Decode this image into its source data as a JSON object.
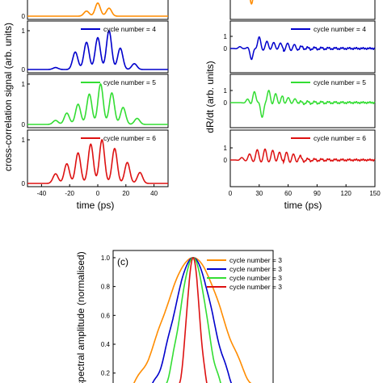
{
  "chart_data": [
    {
      "type": "line",
      "panel": "a",
      "xlabel": "time (ps)",
      "ylabel": "cross-correlation signal (arb. units)",
      "xlim": [
        -50,
        50
      ],
      "xticks": [
        "-40",
        "-20",
        "0",
        "20",
        "40"
      ],
      "subplots": [
        {
          "label": "",
          "color": "#ff8c00",
          "yticks": [
            "0"
          ],
          "pulses": [
            [
              -8,
              0.35
            ],
            [
              0,
              0.9
            ],
            [
              8,
              0.55
            ]
          ]
        },
        {
          "label": "cycle number = 4",
          "color": "#0000cc",
          "yticks": [
            "0",
            "1"
          ],
          "pulses": [
            [
              -30,
              0.05
            ],
            [
              -16,
              0.45
            ],
            [
              -8,
              0.7
            ],
            [
              0,
              0.82
            ],
            [
              8,
              1.0
            ],
            [
              16,
              0.55
            ],
            [
              26,
              0.15
            ]
          ]
        },
        {
          "label": "cycle number = 5",
          "color": "#33dd33",
          "yticks": [
            "0",
            "1"
          ],
          "pulses": [
            [
              -30,
              0.1
            ],
            [
              -22,
              0.28
            ],
            [
              -14,
              0.5
            ],
            [
              -6,
              0.75
            ],
            [
              2,
              1.0
            ],
            [
              10,
              0.78
            ],
            [
              18,
              0.42
            ],
            [
              28,
              0.15
            ]
          ]
        },
        {
          "label": "cycle number = 6",
          "color": "#dd1111",
          "yticks": [
            "0",
            "1"
          ],
          "pulses": [
            [
              -30,
              0.22
            ],
            [
              -22,
              0.45
            ],
            [
              -14,
              0.7
            ],
            [
              -5,
              0.9
            ],
            [
              3,
              1.0
            ],
            [
              12,
              0.8
            ],
            [
              21,
              0.48
            ],
            [
              30,
              0.25
            ]
          ]
        }
      ]
    },
    {
      "type": "line",
      "panel": "b",
      "xlabel": "time (ps)",
      "ylabel": "dR/dt (arb. units)",
      "xlim": [
        0,
        150
      ],
      "xticks": [
        "0",
        "30",
        "60",
        "90",
        "120",
        "150"
      ],
      "subplots": [
        {
          "label": "",
          "color": "#ff8c00",
          "yticks": [],
          "events": []
        },
        {
          "label": "cycle number = 4",
          "color": "#0000cc",
          "yticks": [
            "0",
            "1"
          ],
          "events": [
            [
              10,
              0.15
            ],
            [
              22,
              -0.9
            ],
            [
              30,
              0.95
            ],
            [
              38,
              0.6
            ],
            [
              45,
              0.5
            ],
            [
              52,
              0.45
            ],
            [
              60,
              0.3
            ],
            [
              67,
              0.2
            ],
            [
              75,
              0.12
            ]
          ]
        },
        {
          "label": "cycle number = 5",
          "color": "#33dd33",
          "yticks": [
            "0",
            "1"
          ],
          "events": [
            [
              18,
              0.3
            ],
            [
              25,
              0.9
            ],
            [
              33,
              -1.2
            ],
            [
              40,
              1.0
            ],
            [
              47,
              0.75
            ],
            [
              54,
              0.55
            ],
            [
              61,
              0.4
            ],
            [
              68,
              0.28
            ]
          ]
        },
        {
          "label": "cycle number = 6",
          "color": "#dd1111",
          "yticks": [
            "0",
            "1"
          ],
          "events": [
            [
              12,
              0.2
            ],
            [
              20,
              0.5
            ],
            [
              28,
              0.85
            ],
            [
              36,
              0.9
            ],
            [
              44,
              0.8
            ],
            [
              51,
              0.65
            ],
            [
              58,
              0.5
            ],
            [
              65,
              0.38
            ],
            [
              72,
              0.25
            ]
          ]
        }
      ]
    },
    {
      "type": "line",
      "panel": "c",
      "panel_label": "(c)",
      "ylabel": "spectral amplitude (normalised)",
      "yticks": [
        "1.0",
        "0.8",
        "0.6",
        "0.4",
        "0.2"
      ],
      "ylim": [
        0.12,
        1.05
      ],
      "xlim": [
        -1.4,
        1.4
      ],
      "legend": [
        "cycle number = 3",
        "cycle number = 3",
        "cycle number = 3",
        "cycle number = 3"
      ],
      "series": [
        {
          "color": "#ff8c00",
          "width": 0.72
        },
        {
          "color": "#0000cc",
          "width": 0.48
        },
        {
          "color": "#33dd33",
          "width": 0.33
        },
        {
          "color": "#dd1111",
          "width": 0.16
        }
      ]
    }
  ],
  "texts": {
    "a_xlabel": "time (ps)",
    "a_ylabel": "cross-correlation signal (arb. units)",
    "b_xlabel": "time (ps)",
    "b_ylabel": "dR/dt (arb. units)",
    "c_label": "(c)",
    "c_ylabel": "spectral amplitude (normalised)"
  }
}
